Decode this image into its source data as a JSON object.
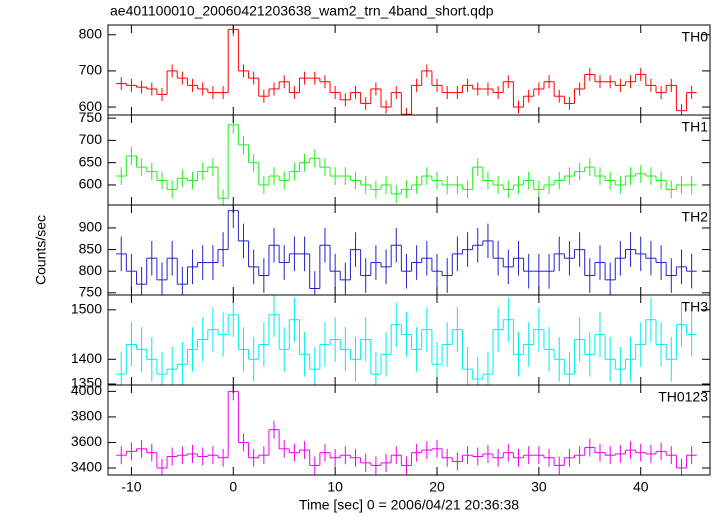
{
  "chart_data": {
    "type": "step",
    "title": "ae401100010_20060421203638_wam2_trn_4band_short.qdp",
    "x_label": "Time [sec] 0 = 2006/04/21 20:36:38",
    "y_label": "Counts/sec",
    "xlim": [
      -12.3,
      46.8
    ],
    "xticks": [
      -10,
      0,
      10,
      20,
      30,
      40
    ],
    "x": [
      -11,
      -10,
      -9,
      -8,
      -7,
      -6,
      -5,
      -4,
      -3,
      -2,
      -1,
      0,
      1,
      2,
      3,
      4,
      5,
      6,
      7,
      8,
      9,
      10,
      11,
      12,
      13,
      14,
      15,
      16,
      17,
      18,
      19,
      20,
      21,
      22,
      23,
      24,
      25,
      26,
      27,
      28,
      29,
      30,
      31,
      32,
      33,
      34,
      35,
      36,
      37,
      38,
      39,
      40,
      41,
      42,
      43,
      44,
      45
    ],
    "panels": [
      {
        "name": "TH0",
        "color": "#ff0000",
        "ylim": [
          578,
          827
        ],
        "yticks": [
          600,
          700,
          800
        ],
        "error": 18,
        "values": [
          665,
          660,
          655,
          650,
          635,
          700,
          680,
          660,
          650,
          640,
          640,
          815,
          700,
          680,
          630,
          650,
          670,
          640,
          680,
          680,
          670,
          640,
          620,
          640,
          610,
          650,
          600,
          640,
          580,
          660,
          700,
          660,
          640,
          640,
          660,
          650,
          650,
          640,
          670,
          600,
          630,
          650,
          670,
          630,
          610,
          650,
          690,
          670,
          670,
          660,
          670,
          690,
          660,
          640,
          660,
          590,
          640
        ]
      },
      {
        "name": "TH1",
        "color": "#22ee22",
        "ylim": [
          555,
          757
        ],
        "yticks": [
          600,
          650,
          700,
          750
        ],
        "error": 20,
        "values": [
          620,
          665,
          640,
          630,
          610,
          590,
          615,
          610,
          630,
          640,
          570,
          735,
          690,
          650,
          600,
          620,
          610,
          630,
          650,
          660,
          640,
          620,
          620,
          610,
          600,
          590,
          600,
          580,
          590,
          600,
          620,
          610,
          600,
          600,
          590,
          640,
          610,
          600,
          590,
          600,
          610,
          590,
          600,
          610,
          620,
          630,
          640,
          620,
          610,
          600,
          620,
          625,
          620,
          610,
          590,
          600,
          600
        ]
      },
      {
        "name": "TH2",
        "color": "#2222cc",
        "ylim": [
          745,
          953
        ],
        "yticks": [
          750,
          800,
          850,
          900
        ],
        "error": 40,
        "values": [
          840,
          800,
          770,
          830,
          780,
          830,
          770,
          810,
          820,
          820,
          850,
          940,
          870,
          810,
          790,
          860,
          820,
          840,
          840,
          760,
          860,
          800,
          780,
          850,
          790,
          820,
          810,
          860,
          800,
          820,
          830,
          800,
          790,
          840,
          850,
          860,
          870,
          830,
          810,
          830,
          800,
          800,
          800,
          840,
          830,
          850,
          790,
          820,
          780,
          830,
          850,
          840,
          830,
          820,
          790,
          810,
          800
        ]
      },
      {
        "name": "TH3",
        "color": "#00eeee",
        "ylim": [
          1348,
          1530
        ],
        "yticks": [
          1350,
          1400,
          1500
        ],
        "error": 45,
        "values": [
          1370,
          1430,
          1420,
          1400,
          1370,
          1380,
          1390,
          1420,
          1440,
          1460,
          1450,
          1490,
          1420,
          1400,
          1430,
          1490,
          1420,
          1480,
          1410,
          1380,
          1430,
          1440,
          1420,
          1400,
          1440,
          1370,
          1410,
          1470,
          1450,
          1420,
          1460,
          1390,
          1430,
          1460,
          1380,
          1360,
          1370,
          1460,
          1480,
          1410,
          1430,
          1460,
          1420,
          1400,
          1370,
          1440,
          1410,
          1450,
          1400,
          1380,
          1400,
          1430,
          1480,
          1430,
          1400,
          1470,
          1450
        ]
      },
      {
        "name": "TH0123",
        "color": "#ee00ee",
        "ylim": [
          3345,
          4050
        ],
        "yticks": [
          3400,
          3600,
          3800,
          4000
        ],
        "error": 70,
        "values": [
          3500,
          3530,
          3550,
          3520,
          3400,
          3490,
          3500,
          3510,
          3490,
          3500,
          3480,
          4000,
          3600,
          3480,
          3500,
          3700,
          3550,
          3520,
          3540,
          3420,
          3520,
          3480,
          3500,
          3480,
          3440,
          3420,
          3440,
          3500,
          3420,
          3520,
          3540,
          3550,
          3480,
          3450,
          3500,
          3490,
          3510,
          3480,
          3520,
          3480,
          3500,
          3500,
          3480,
          3420,
          3480,
          3500,
          3560,
          3520,
          3500,
          3510,
          3540,
          3520,
          3510,
          3530,
          3500,
          3400,
          3500
        ]
      }
    ]
  }
}
